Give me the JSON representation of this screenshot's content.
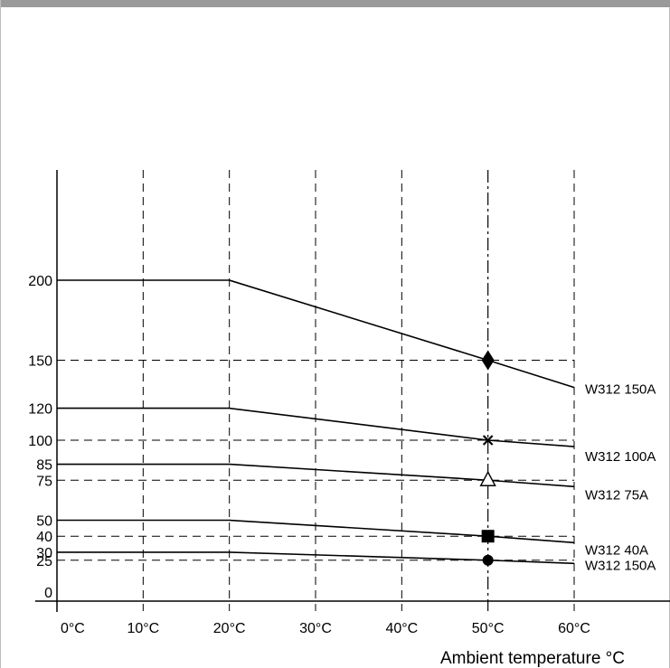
{
  "chart_data": {
    "type": "line",
    "title": "",
    "xlabel": "Ambient temperature °C",
    "ylabel": "",
    "x_ticks": [
      {
        "value": 0,
        "label": "0°C"
      },
      {
        "value": 10,
        "label": "10°C"
      },
      {
        "value": 20,
        "label": "20°C"
      },
      {
        "value": 30,
        "label": "30°C"
      },
      {
        "value": 40,
        "label": "40°C"
      },
      {
        "value": 50,
        "label": "50°C"
      },
      {
        "value": 60,
        "label": "60°C"
      }
    ],
    "y_ticks": [
      {
        "value": 0,
        "label": "0"
      },
      {
        "value": 25,
        "label": "25"
      },
      {
        "value": 30,
        "label": "30"
      },
      {
        "value": 40,
        "label": "40"
      },
      {
        "value": 50,
        "label": "50"
      },
      {
        "value": 75,
        "label": "75"
      },
      {
        "value": 85,
        "label": "85"
      },
      {
        "value": 100,
        "label": "100"
      },
      {
        "value": 120,
        "label": "120"
      },
      {
        "value": 150,
        "label": "150"
      },
      {
        "value": 200,
        "label": "200"
      }
    ],
    "xlim": [
      0,
      60
    ],
    "ylim": [
      0,
      200
    ],
    "grid": {
      "vertical_dashed_at": [
        10,
        20,
        30,
        40,
        60
      ],
      "vertical_dashdot_at": [
        50
      ],
      "horizontal_dashed_at": [
        25,
        40,
        75,
        100,
        150
      ]
    },
    "series": [
      {
        "name": "W312  150A",
        "x": [
          0,
          20,
          50,
          60
        ],
        "y": [
          200,
          200,
          150,
          133
        ],
        "marker": "diamond"
      },
      {
        "name": "W312  100A",
        "x": [
          0,
          20,
          50,
          60
        ],
        "y": [
          120,
          120,
          100,
          96
        ],
        "marker": "x"
      },
      {
        "name": "W312 75A",
        "x": [
          0,
          20,
          50,
          60
        ],
        "y": [
          85,
          85,
          75,
          71
        ],
        "marker": "triangle-open"
      },
      {
        "name": "W312 40A",
        "x": [
          0,
          20,
          50,
          60
        ],
        "y": [
          50,
          50,
          40,
          36
        ],
        "marker": "square"
      },
      {
        "name": "W312 150A",
        "x": [
          0,
          20,
          50,
          60
        ],
        "y": [
          30,
          30,
          25,
          23
        ],
        "marker": "circle"
      }
    ],
    "colors": {
      "line": "#000000",
      "grid": "#000000",
      "frame": "#bdbdbd",
      "top_bar": "#9a9a9a"
    }
  }
}
